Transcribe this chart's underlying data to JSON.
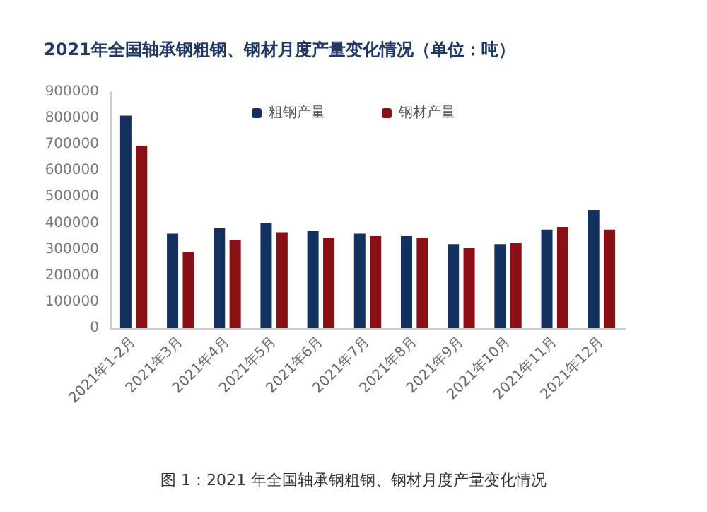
{
  "chart_data": {
    "type": "bar",
    "title": "2021年全国轴承钢粗钢、钢材月度产量变化情况（单位：吨）",
    "categories": [
      "2021年1-2月",
      "2021年3月",
      "2021年4月",
      "2021年5月",
      "2021年6月",
      "2021年7月",
      "2021年8月",
      "2021年9月",
      "2021年10月",
      "2021年11月",
      "2021年12月"
    ],
    "series": [
      {
        "name": "粗钢产量",
        "color": "#13315f",
        "values": [
          810000,
          360000,
          380000,
          400000,
          370000,
          360000,
          350000,
          320000,
          320000,
          375000,
          450000
        ]
      },
      {
        "name": "钢材产量",
        "color": "#8b1016",
        "values": [
          695000,
          290000,
          335000,
          365000,
          345000,
          350000,
          345000,
          305000,
          325000,
          385000,
          375000
        ]
      }
    ],
    "ylim": [
      0,
      900000
    ],
    "yticks": [
      0,
      100000,
      200000,
      300000,
      400000,
      500000,
      600000,
      700000,
      800000,
      900000
    ],
    "grid": false,
    "legend": "top",
    "annotations": [
      "图 1：2021 年全国轴承钢粗钢、钢材月度产量变化情况"
    ]
  }
}
